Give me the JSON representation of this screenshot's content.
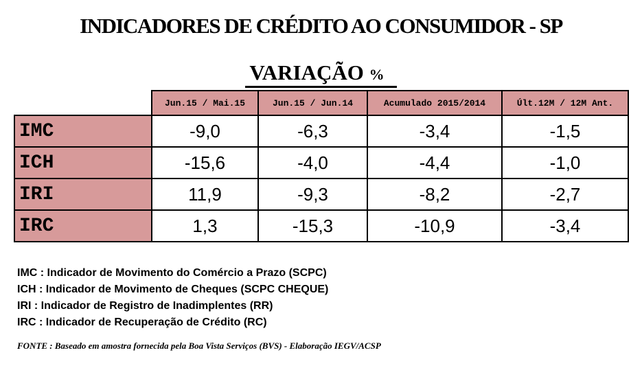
{
  "title": "INDICADORES DE CRÉDITO AO CONSUMIDOR - SP",
  "subtitle": {
    "text": "VARIAÇÃO",
    "pct": "%"
  },
  "table": {
    "headers": [
      "Jun.15 / Mai.15",
      "Jun.15 / Jun.14",
      "Acumulado 2015/2014",
      "Últ.12M / 12M Ant."
    ],
    "rows": [
      {
        "label": "IMC",
        "values": [
          "-9,0",
          "-6,3",
          "-3,4",
          "-1,5"
        ]
      },
      {
        "label": "ICH",
        "values": [
          "-15,6",
          "-4,0",
          "-4,4",
          "-1,0"
        ]
      },
      {
        "label": "IRI",
        "values": [
          "11,9",
          "-9,3",
          "-8,2",
          "-2,7"
        ]
      },
      {
        "label": "IRC",
        "values": [
          "1,3",
          "-15,3",
          "-10,9",
          "-3,4"
        ]
      }
    ]
  },
  "legend": [
    "IMC : Indicador de Movimento do Comércio a Prazo (SCPC)",
    "ICH : Indicador de Movimento de Cheques (SCPC CHEQUE)",
    "IRI : Indicador de Registro de Inadimplentes (RR)",
    "IRC : Indicador de Recuperação de Crédito (RC)"
  ],
  "source": "FONTE : Baseado em amostra fornecida pela Boa Vista Serviços (BVS) - Elaboração IEGV/ACSP",
  "colors": {
    "header_fill": "#d79a9a"
  }
}
